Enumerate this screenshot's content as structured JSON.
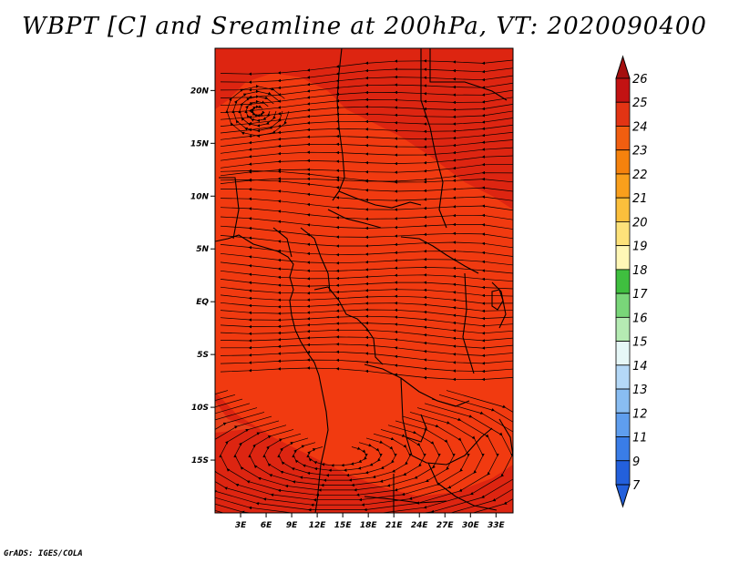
{
  "title": "WBPT [C] and Sreamline at 200hPa, VT: 2020090400",
  "credit": "GrADS: IGES/COLA",
  "map": {
    "lon_range": [
      0,
      35
    ],
    "lat_range": [
      -20,
      24
    ],
    "lon_ticks": [
      {
        "value": 3,
        "label": "3E"
      },
      {
        "value": 6,
        "label": "6E"
      },
      {
        "value": 9,
        "label": "9E"
      },
      {
        "value": 12,
        "label": "12E"
      },
      {
        "value": 15,
        "label": "15E"
      },
      {
        "value": 18,
        "label": "18E"
      },
      {
        "value": 21,
        "label": "21E"
      },
      {
        "value": 24,
        "label": "24E"
      },
      {
        "value": 27,
        "label": "27E"
      },
      {
        "value": 30,
        "label": "30E"
      },
      {
        "value": 33,
        "label": "33E"
      }
    ],
    "lat_ticks": [
      {
        "value": 20,
        "label": "20N"
      },
      {
        "value": 15,
        "label": "15N"
      },
      {
        "value": 10,
        "label": "10N"
      },
      {
        "value": 5,
        "label": "5N"
      },
      {
        "value": 0,
        "label": "EQ"
      },
      {
        "value": -5,
        "label": "5S"
      },
      {
        "value": -10,
        "label": "10S"
      },
      {
        "value": -15,
        "label": "15S"
      }
    ],
    "base_color": "#f13a10",
    "warm_color": "#dd2511"
  },
  "colorbar": {
    "levels": [
      {
        "label": "26",
        "color": "#a50f0f"
      },
      {
        "label": "25",
        "color": "#c21212"
      },
      {
        "label": "24",
        "color": "#e23414"
      },
      {
        "label": "23",
        "color": "#f15e10"
      },
      {
        "label": "22",
        "color": "#f5820d"
      },
      {
        "label": "21",
        "color": "#f99f1c"
      },
      {
        "label": "20",
        "color": "#fbbf3c"
      },
      {
        "label": "19",
        "color": "#fde27a"
      },
      {
        "label": "18",
        "color": "#fff7b6"
      },
      {
        "label": "17",
        "color": "#3fbf3f"
      },
      {
        "label": "16",
        "color": "#79d679"
      },
      {
        "label": "15",
        "color": "#b5ebb3"
      },
      {
        "label": "14",
        "color": "#e6f7f7"
      },
      {
        "label": "13",
        "color": "#b4d8f7"
      },
      {
        "label": "12",
        "color": "#89bdf2"
      },
      {
        "label": "11",
        "color": "#5f9eee"
      },
      {
        "label": "9",
        "color": "#3a7de7"
      },
      {
        "label": "7",
        "color": "#2360dc"
      }
    ]
  }
}
